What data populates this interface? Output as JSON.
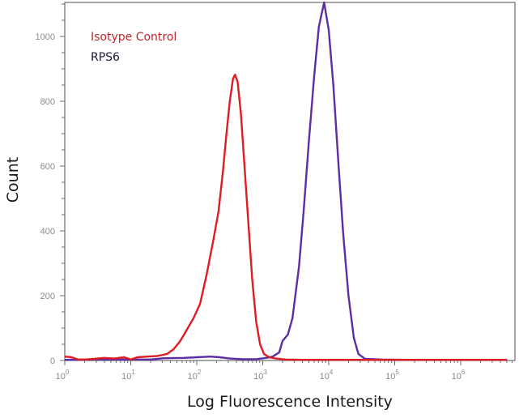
{
  "chart_data": {
    "type": "line",
    "title": "",
    "xlabel": "Log Fluorescence Intensity",
    "ylabel": "Count",
    "xscale": "log",
    "xlim": [
      1,
      6000000
    ],
    "ylim": [
      0,
      1100
    ],
    "x_ticks": [
      {
        "exp": 0,
        "label": "10",
        "sup": "0"
      },
      {
        "exp": 1,
        "label": "10",
        "sup": "1"
      },
      {
        "exp": 2,
        "label": "10",
        "sup": "2"
      },
      {
        "exp": 3,
        "label": "10",
        "sup": "3"
      },
      {
        "exp": 4,
        "label": "10",
        "sup": "4"
      },
      {
        "exp": 5,
        "label": "10",
        "sup": "5"
      },
      {
        "exp": 6,
        "label": "10",
        "sup": "6"
      }
    ],
    "y_ticks": [
      0,
      200,
      400,
      600,
      800,
      1000
    ],
    "grid": false,
    "legend_position": "upper-left",
    "series": [
      {
        "name": "Isotype Control",
        "color": "#e01b24",
        "legend_color": "#c0262d",
        "points_log10x_count": [
          [
            0.0,
            12
          ],
          [
            0.1,
            10
          ],
          [
            0.2,
            3
          ],
          [
            0.3,
            3
          ],
          [
            0.45,
            5
          ],
          [
            0.6,
            8
          ],
          [
            0.75,
            6
          ],
          [
            0.9,
            10
          ],
          [
            1.0,
            3
          ],
          [
            1.1,
            10
          ],
          [
            1.25,
            12
          ],
          [
            1.4,
            14
          ],
          [
            1.55,
            20
          ],
          [
            1.65,
            35
          ],
          [
            1.75,
            60
          ],
          [
            1.85,
            95
          ],
          [
            1.95,
            130
          ],
          [
            2.05,
            175
          ],
          [
            2.15,
            265
          ],
          [
            2.25,
            370
          ],
          [
            2.33,
            460
          ],
          [
            2.4,
            590
          ],
          [
            2.45,
            700
          ],
          [
            2.5,
            800
          ],
          [
            2.55,
            870
          ],
          [
            2.58,
            882
          ],
          [
            2.62,
            860
          ],
          [
            2.67,
            760
          ],
          [
            2.72,
            610
          ],
          [
            2.78,
            430
          ],
          [
            2.84,
            250
          ],
          [
            2.9,
            120
          ],
          [
            2.96,
            50
          ],
          [
            3.02,
            20
          ],
          [
            3.1,
            10
          ],
          [
            3.2,
            6
          ],
          [
            3.35,
            3
          ],
          [
            3.6,
            2
          ],
          [
            4.0,
            2
          ],
          [
            4.5,
            2
          ],
          [
            5.0,
            2
          ],
          [
            5.5,
            2
          ],
          [
            6.0,
            2
          ],
          [
            6.7,
            2
          ]
        ]
      },
      {
        "name": "RPS6",
        "color": "#5b2ea6",
        "legend_color": "#1a1a3a",
        "points_log10x_count": [
          [
            0.0,
            2
          ],
          [
            0.5,
            3
          ],
          [
            1.0,
            3
          ],
          [
            1.3,
            3
          ],
          [
            1.5,
            7
          ],
          [
            1.8,
            8
          ],
          [
            2.0,
            10
          ],
          [
            2.2,
            12
          ],
          [
            2.35,
            10
          ],
          [
            2.5,
            6
          ],
          [
            2.7,
            4
          ],
          [
            2.9,
            4
          ],
          [
            3.05,
            8
          ],
          [
            3.15,
            12
          ],
          [
            3.25,
            25
          ],
          [
            3.3,
            60
          ],
          [
            3.38,
            80
          ],
          [
            3.45,
            130
          ],
          [
            3.55,
            290
          ],
          [
            3.62,
            460
          ],
          [
            3.7,
            680
          ],
          [
            3.78,
            880
          ],
          [
            3.85,
            1030
          ],
          [
            3.93,
            1105
          ],
          [
            4.0,
            1020
          ],
          [
            4.07,
            850
          ],
          [
            4.15,
            600
          ],
          [
            4.22,
            390
          ],
          [
            4.3,
            200
          ],
          [
            4.38,
            70
          ],
          [
            4.45,
            20
          ],
          [
            4.55,
            5
          ],
          [
            4.8,
            3
          ],
          [
            5.2,
            2
          ],
          [
            6.0,
            2
          ],
          [
            6.7,
            2
          ]
        ]
      }
    ],
    "annotations": []
  },
  "legend": {
    "items": [
      {
        "label": "Isotype Control",
        "color": "#c0262d"
      },
      {
        "label": "RPS6",
        "color": "#1a1a3a"
      }
    ]
  },
  "axes": {
    "x_title": "Log Fluorescence Intensity",
    "y_title": "Count"
  }
}
